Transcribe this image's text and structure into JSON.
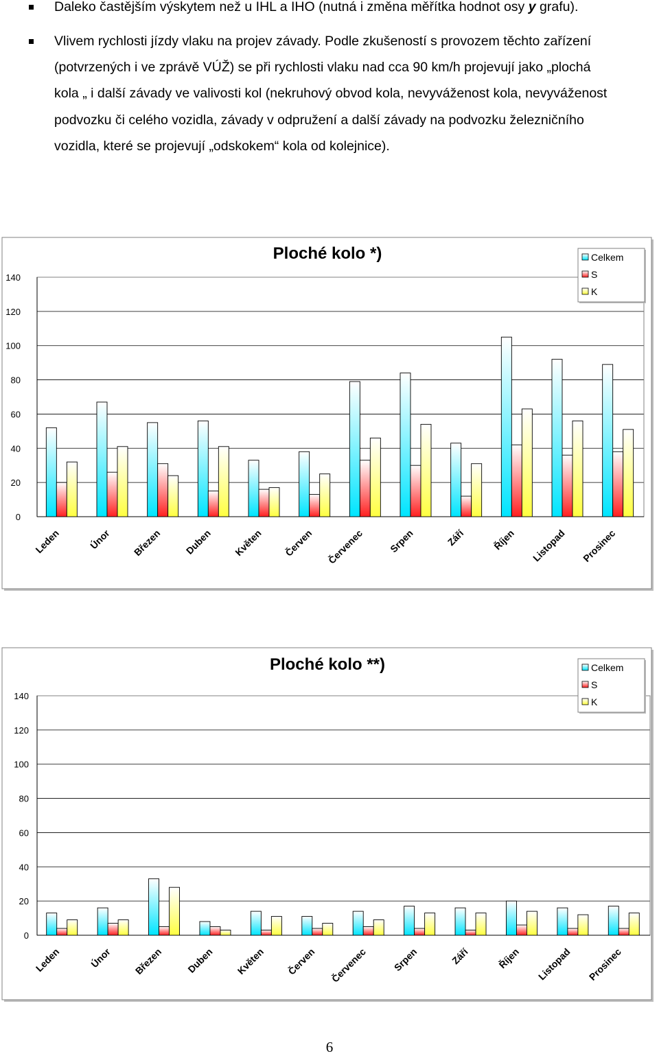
{
  "text": {
    "bullet1": "Daleko častějším výskytem než u IHL a IHO (nutná i změna měřítka hodnot osy",
    "bullet1_italic": "y",
    "bullet1_end": "grafu).",
    "bullet2_lines": [
      "Vlivem rychlosti jízdy vlaku na projev závady. Podle zkušeností s provozem těchto zařízení",
      "(potvrzených i ve zprávě  VÚŽ) se při rychlosti vlaku nad cca 90 km/h projevují jako „plochá",
      "kola „ i další závady ve valivosti kol (nekruhový obvod kola, nevyváženost kola, nevyváženost",
      "podvozku či celého vozidla, závady v odpružení a další závady na podvozku železničního",
      "vozidla, které se projevují „odskokem“ kola od kolejnice)."
    ]
  },
  "colors": {
    "celkem": "#00e5ff",
    "s": "#ff2020",
    "k": "#ffff40"
  },
  "chart_data": [
    {
      "type": "bar",
      "title": "Ploché kolo *)",
      "categories": [
        "Leden",
        "Únor",
        "Březen",
        "Duben",
        "Květen",
        "Červen",
        "Červenec",
        "Srpen",
        "Září",
        "Říjen",
        "Listopad",
        "Prosinec"
      ],
      "series": [
        {
          "name": "Celkem",
          "values": [
            52,
            67,
            55,
            56,
            33,
            38,
            79,
            84,
            43,
            105,
            92,
            89
          ]
        },
        {
          "name": "S",
          "values": [
            20,
            26,
            31,
            15,
            16,
            13,
            33,
            30,
            12,
            42,
            36,
            38
          ]
        },
        {
          "name": "K",
          "values": [
            32,
            41,
            24,
            41,
            17,
            25,
            46,
            54,
            31,
            63,
            56,
            51
          ]
        }
      ],
      "ylim": [
        0,
        140
      ],
      "yticks": [
        "0",
        "20",
        "40",
        "60",
        "80",
        "100",
        "120",
        "140"
      ],
      "grid": true,
      "legend": "top-right"
    },
    {
      "type": "bar",
      "title": "Ploché kolo **)",
      "categories": [
        "Leden",
        "Únor",
        "Březen",
        "Duben",
        "Květen",
        "Červen",
        "Červenec",
        "Srpen",
        "Září",
        "Říjen",
        "Listopad",
        "Prosinec"
      ],
      "series": [
        {
          "name": "Celkem",
          "values": [
            13,
            16,
            33,
            8,
            14,
            11,
            14,
            17,
            16,
            20,
            16,
            17
          ]
        },
        {
          "name": "S",
          "values": [
            4,
            7,
            5,
            5,
            3,
            4,
            5,
            4,
            3,
            6,
            4,
            4
          ]
        },
        {
          "name": "K",
          "values": [
            9,
            9,
            28,
            3,
            11,
            7,
            9,
            13,
            13,
            14,
            12,
            13
          ]
        }
      ],
      "ylim": [
        0,
        140
      ],
      "yticks": [
        "0",
        "20",
        "40",
        "60",
        "80",
        "100",
        "120",
        "140"
      ],
      "grid": true,
      "legend": "top-right"
    }
  ],
  "page_number": "6"
}
